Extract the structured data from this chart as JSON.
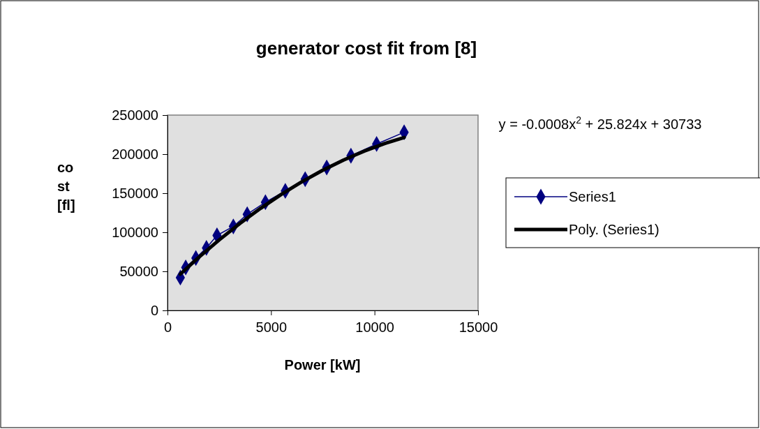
{
  "chart_data": {
    "type": "line",
    "title": "generator cost fit from [8]",
    "xlabel": "Power [kW]",
    "ylabel": "cost [fl]",
    "annotations": [
      "y = -0.0008x$^{2}$ + 25.824x + 30733"
    ],
    "xlim": [
      0,
      15000
    ],
    "xticks": [
      0,
      5000,
      10000,
      15000
    ],
    "ylim": [
      0,
      250000
    ],
    "yticks": [
      0,
      50000,
      100000,
      150000,
      200000,
      250000
    ],
    "grid": false,
    "legend": "right",
    "series": [
      {
        "name": "Series1",
        "color": "#000080",
        "marker": "diamond",
        "x": [
          620,
          880,
          1370,
          1880,
          2390,
          3180,
          3850,
          4730,
          5690,
          6650,
          7690,
          8860,
          10100,
          11430
        ],
        "values": [
          42000,
          55000,
          67000,
          80000,
          96000,
          107500,
          123000,
          138500,
          153000,
          168000,
          183000,
          198000,
          213000,
          228000
        ]
      },
      {
        "name": "Poly. (Series1)",
        "color": "#000000",
        "marker": "none",
        "x": [
          620,
          1500,
          2500,
          3500,
          4500,
          5500,
          6500,
          7500,
          8500,
          9500,
          10500,
          11430
        ],
        "values": [
          46437,
          67669,
          90293,
          111317,
          130741,
          148565,
          164789,
          179413,
          192437,
          203861,
          213685,
          221386
        ]
      }
    ]
  }
}
